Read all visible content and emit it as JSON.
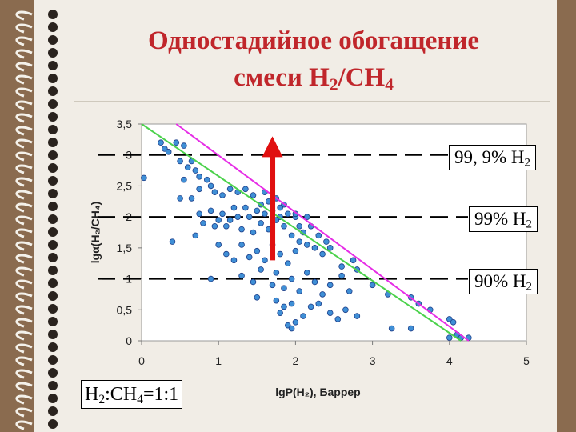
{
  "title": {
    "line1": "Одностадийное обогащение",
    "line2_pre": "смеси Н",
    "line2_sub1": "2",
    "line2_mid": "/СН",
    "line2_sub2": "4"
  },
  "boxes": {
    "b999": {
      "text": "99, 9% H",
      "sub": "2"
    },
    "b99": {
      "text": "99% H",
      "sub": "2"
    },
    "b90": {
      "text": "90% H",
      "sub": "2"
    },
    "ratio": {
      "a": "H",
      "a_sub": "2",
      "b": ":CH",
      "b_sub": "4",
      "c": "=1:1"
    }
  },
  "colors": {
    "points": "#3f8fd6",
    "point_edge": "#1d3f8a",
    "green_line": "#4cd24c",
    "magenta_line": "#e62ee6",
    "arrow": "#e01010",
    "title": "#c0262b"
  },
  "chart_data": {
    "type": "scatter",
    "xlabel": "lgP(H₂), Баррер",
    "ylabel": "lgα(H₂/CH₄)",
    "xlim": [
      0,
      5
    ],
    "ylim": [
      0,
      3.5
    ],
    "x_ticks": [
      "0",
      "1",
      "2",
      "3",
      "4",
      "5"
    ],
    "y_ticks": [
      "0",
      "0,5",
      "1",
      "1,5",
      "2",
      "2,5",
      "3",
      "3,5"
    ],
    "grid": false,
    "series": [
      {
        "values": [
          [
            0.03,
            2.63
          ],
          [
            0.25,
            3.2
          ],
          [
            0.3,
            3.1
          ],
          [
            0.35,
            3.05
          ],
          [
            0.45,
            3.2
          ],
          [
            0.55,
            3.15
          ],
          [
            0.5,
            2.9
          ],
          [
            0.6,
            2.8
          ],
          [
            0.65,
            2.9
          ],
          [
            0.7,
            2.75
          ],
          [
            0.55,
            2.6
          ],
          [
            0.75,
            2.65
          ],
          [
            0.85,
            2.6
          ],
          [
            0.5,
            2.3
          ],
          [
            0.65,
            2.3
          ],
          [
            0.75,
            2.45
          ],
          [
            0.9,
            2.5
          ],
          [
            0.95,
            2.4
          ],
          [
            1.05,
            2.35
          ],
          [
            1.15,
            2.45
          ],
          [
            1.25,
            2.4
          ],
          [
            1.35,
            2.45
          ],
          [
            0.4,
            1.6
          ],
          [
            0.7,
            1.7
          ],
          [
            0.75,
            2.05
          ],
          [
            0.8,
            1.9
          ],
          [
            0.9,
            2.1
          ],
          [
            0.95,
            1.85
          ],
          [
            1.0,
            1.95
          ],
          [
            1.05,
            2.05
          ],
          [
            1.1,
            1.85
          ],
          [
            1.15,
            1.95
          ],
          [
            1.2,
            2.15
          ],
          [
            1.25,
            2.0
          ],
          [
            1.3,
            1.8
          ],
          [
            1.35,
            2.15
          ],
          [
            1.4,
            2.0
          ],
          [
            1.45,
            1.75
          ],
          [
            1.5,
            2.1
          ],
          [
            1.55,
            1.9
          ],
          [
            1.6,
            2.05
          ],
          [
            1.65,
            1.8
          ],
          [
            1.7,
            2.1
          ],
          [
            1.75,
            1.95
          ],
          [
            1.8,
            2.0
          ],
          [
            1.85,
            1.85
          ],
          [
            1.9,
            2.05
          ],
          [
            1.95,
            1.7
          ],
          [
            2.0,
            2.0
          ],
          [
            2.05,
            1.85
          ],
          [
            1.55,
            2.2
          ],
          [
            1.65,
            2.25
          ],
          [
            1.75,
            2.3
          ],
          [
            1.85,
            2.2
          ],
          [
            1.45,
            2.35
          ],
          [
            1.6,
            2.4
          ],
          [
            2.05,
            1.6
          ],
          [
            2.15,
            1.55
          ],
          [
            2.25,
            1.5
          ],
          [
            2.35,
            1.4
          ],
          [
            2.45,
            1.5
          ],
          [
            1.0,
            1.55
          ],
          [
            1.1,
            1.4
          ],
          [
            1.2,
            1.3
          ],
          [
            1.3,
            1.55
          ],
          [
            1.4,
            1.35
          ],
          [
            1.5,
            1.45
          ],
          [
            1.6,
            1.3
          ],
          [
            1.7,
            1.55
          ],
          [
            1.8,
            1.4
          ],
          [
            1.9,
            1.25
          ],
          [
            2.0,
            1.45
          ],
          [
            0.9,
            1.0
          ],
          [
            1.3,
            1.05
          ],
          [
            1.45,
            0.95
          ],
          [
            1.55,
            1.15
          ],
          [
            1.7,
            0.9
          ],
          [
            1.75,
            1.1
          ],
          [
            1.85,
            0.85
          ],
          [
            1.95,
            1.0
          ],
          [
            2.05,
            0.8
          ],
          [
            2.15,
            1.1
          ],
          [
            2.25,
            0.95
          ],
          [
            2.35,
            0.75
          ],
          [
            2.45,
            0.9
          ],
          [
            2.6,
            1.05
          ],
          [
            2.7,
            0.8
          ],
          [
            2.8,
            1.15
          ],
          [
            1.5,
            0.7
          ],
          [
            1.75,
            0.65
          ],
          [
            1.8,
            0.45
          ],
          [
            1.85,
            0.55
          ],
          [
            1.95,
            0.6
          ],
          [
            2.0,
            0.3
          ],
          [
            2.1,
            0.4
          ],
          [
            2.2,
            0.55
          ],
          [
            2.3,
            0.6
          ],
          [
            2.45,
            0.45
          ],
          [
            2.55,
            0.35
          ],
          [
            2.65,
            0.5
          ],
          [
            2.8,
            0.4
          ],
          [
            1.9,
            0.25
          ],
          [
            1.95,
            0.2
          ],
          [
            3.25,
            0.2
          ],
          [
            3.5,
            0.2
          ],
          [
            3.6,
            0.6
          ],
          [
            3.75,
            0.5
          ],
          [
            4.0,
            0.35
          ],
          [
            4.05,
            0.3
          ],
          [
            4.1,
            0.1
          ],
          [
            4.0,
            0.05
          ],
          [
            4.15,
            0.05
          ],
          [
            4.25,
            0.05
          ],
          [
            3.2,
            0.75
          ],
          [
            3.5,
            0.7
          ],
          [
            3.0,
            0.9
          ],
          [
            2.75,
            1.3
          ],
          [
            2.6,
            1.2
          ],
          [
            2.1,
            1.75
          ],
          [
            2.2,
            1.85
          ],
          [
            2.3,
            1.7
          ],
          [
            2.4,
            1.6
          ],
          [
            2.0,
            2.05
          ],
          [
            1.8,
            2.15
          ],
          [
            2.15,
            2.0
          ]
        ]
      }
    ],
    "reference_lines_y": [
      3,
      2,
      1
    ],
    "green_line": [
      [
        0.0,
        3.5
      ],
      [
        4.15,
        0.0
      ]
    ],
    "magenta_line": [
      [
        0.45,
        3.5
      ],
      [
        4.25,
        0.0
      ]
    ],
    "arrow": {
      "x": 1.7,
      "y_from": 1.3,
      "y_to": 3.25
    }
  }
}
